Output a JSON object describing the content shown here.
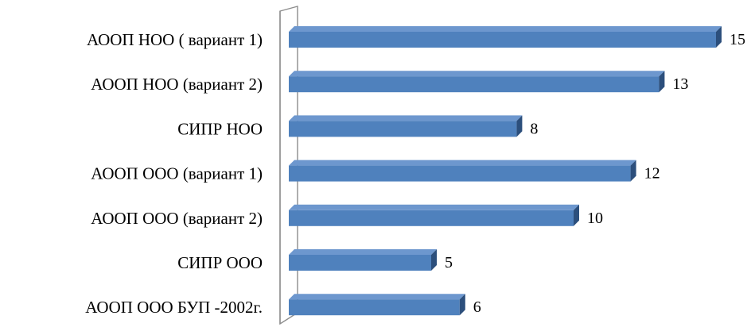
{
  "chart_data": {
    "type": "bar",
    "orientation": "horizontal",
    "style": "3d",
    "categories": [
      "АООП НОО ( вариант 1)",
      "АООП НОО (вариант 2)",
      "СИПР НОО",
      "АООП ООО (вариант 1)",
      "АООП ООО (вариант 2)",
      "СИПР ООО",
      "АООП ООО БУП -2002г."
    ],
    "values": [
      15,
      13,
      8,
      12,
      10,
      5,
      6
    ],
    "value_labels": [
      "15",
      "13",
      "8",
      "12",
      "10",
      "5",
      "6"
    ],
    "title": "",
    "xlabel": "",
    "ylabel": "",
    "xlim": [
      0,
      15
    ],
    "grid": false,
    "legend": "none",
    "colors": {
      "bar_front": "#4f81bd",
      "bar_top": "#6d97ce",
      "bar_side": "#2c4f7c",
      "axis_wall": "#8c8c8c"
    }
  }
}
